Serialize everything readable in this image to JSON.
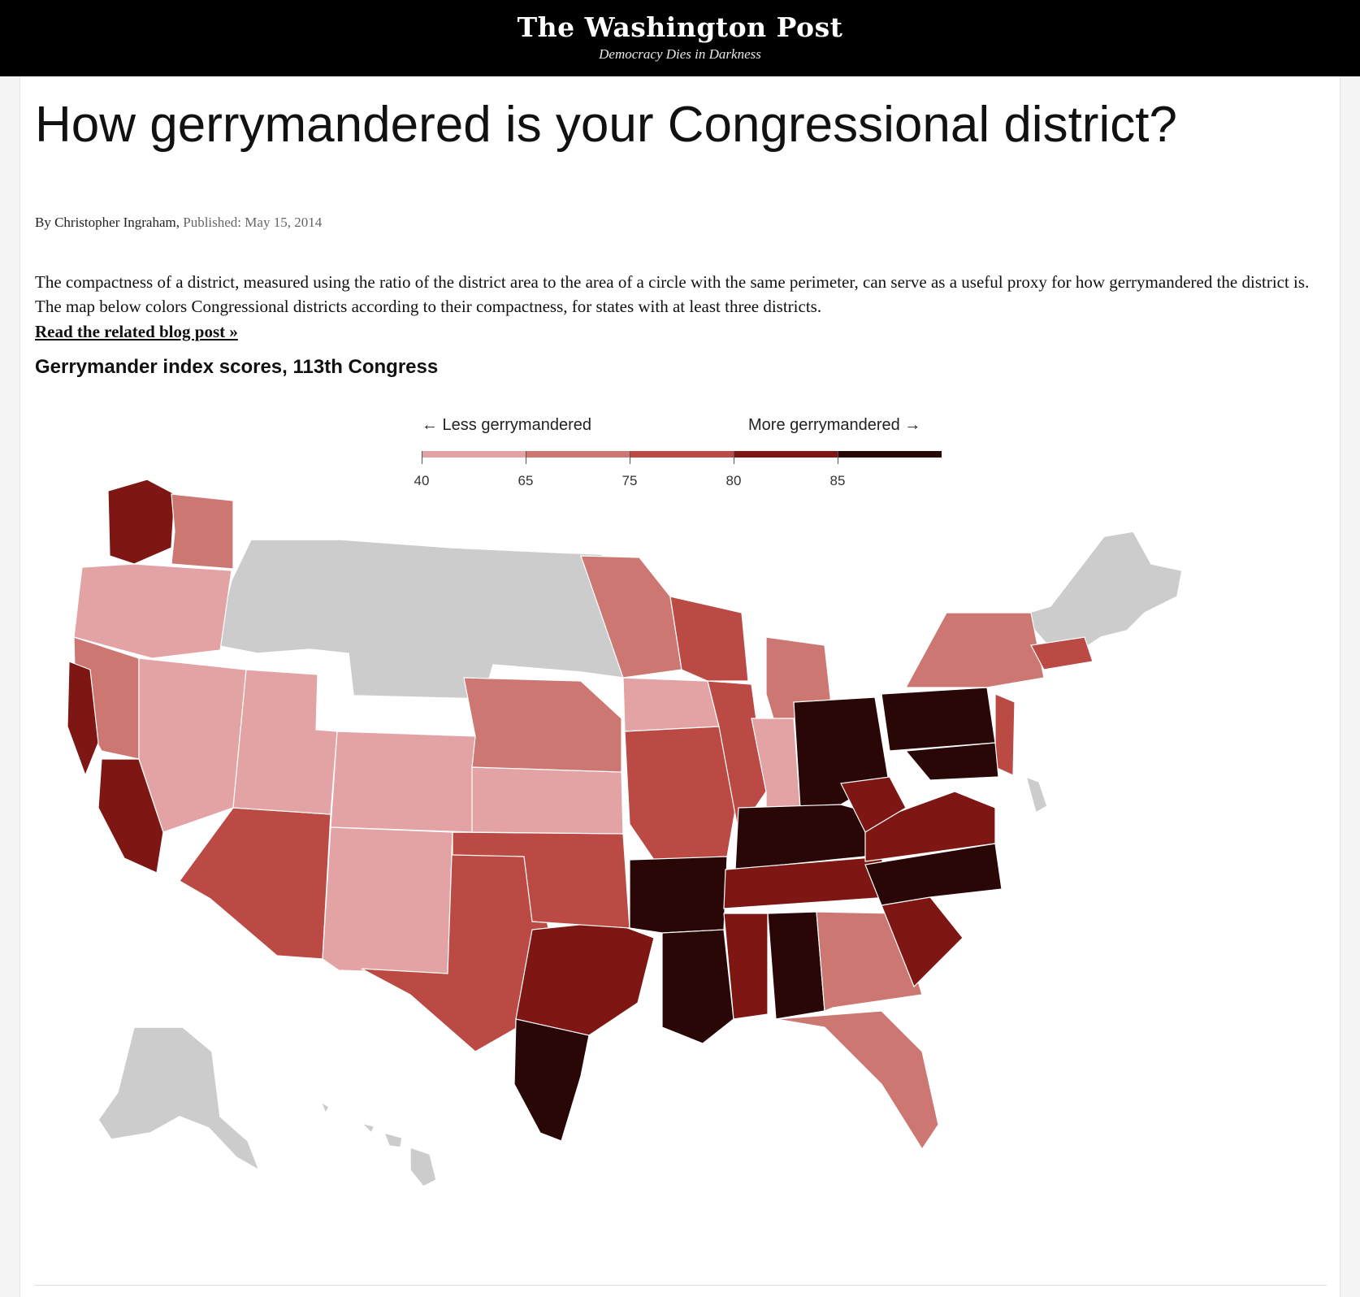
{
  "masthead": {
    "logo": "The Washington Post",
    "tagline": "Democracy Dies in Darkness"
  },
  "article": {
    "headline": "How gerrymandered is your Congressional district?",
    "byline": "By Christopher Ingraham,",
    "published": "Published: May 15, 2014",
    "intro": "The compactness of a district, measured using the ratio of the district area to the area of a circle with the same perimeter, can serve as a useful proxy for how gerrymandered the district is. The map below colors Congressional districts according to their compactness, for states with at least three districts.",
    "link_text": "Read the related blog post »",
    "chart_title": "Gerrymander index scores, 113th Congress"
  },
  "legend": {
    "left_label": "← Less gerrymandered",
    "right_label": "More gerrymandered →",
    "ticks": [
      "40",
      "65",
      "75",
      "80",
      "85"
    ],
    "colors": [
      "#e3a2a4",
      "#cc7772",
      "#bc4a44",
      "#7e1614",
      "#2a0707"
    ]
  },
  "map": {
    "no_data_color": "#cccccc",
    "border_color": "#ffffff",
    "regions": [
      {
        "name": "Washington-west",
        "score_band": 4
      },
      {
        "name": "Washington-east",
        "score_band": 2
      },
      {
        "name": "Oregon",
        "score_band": 1
      },
      {
        "name": "California-north",
        "score_band": 2
      },
      {
        "name": "California-coast",
        "score_band": 4
      },
      {
        "name": "California-south",
        "score_band": 4
      },
      {
        "name": "Nevada",
        "score_band": 1
      },
      {
        "name": "Arizona",
        "score_band": 3
      },
      {
        "name": "Utah",
        "score_band": 1
      },
      {
        "name": "Colorado",
        "score_band": 1
      },
      {
        "name": "New Mexico",
        "score_band": 1
      },
      {
        "name": "Texas-west",
        "score_band": 3
      },
      {
        "name": "Texas-central",
        "score_band": 4
      },
      {
        "name": "Texas-south",
        "score_band": 5
      },
      {
        "name": "Oklahoma",
        "score_band": 3
      },
      {
        "name": "Kansas",
        "score_band": 1
      },
      {
        "name": "Nebraska",
        "score_band": 2
      },
      {
        "name": "Minnesota",
        "score_band": 2
      },
      {
        "name": "Iowa",
        "score_band": 1
      },
      {
        "name": "Missouri",
        "score_band": 3
      },
      {
        "name": "Arkansas",
        "score_band": 5
      },
      {
        "name": "Louisiana",
        "score_band": 5
      },
      {
        "name": "Wisconsin",
        "score_band": 3
      },
      {
        "name": "Illinois",
        "score_band": 3
      },
      {
        "name": "Michigan",
        "score_band": 2
      },
      {
        "name": "Indiana",
        "score_band": 1
      },
      {
        "name": "Ohio",
        "score_band": 5
      },
      {
        "name": "Kentucky",
        "score_band": 5
      },
      {
        "name": "Tennessee",
        "score_band": 4
      },
      {
        "name": "Mississippi",
        "score_band": 4
      },
      {
        "name": "Alabama",
        "score_band": 5
      },
      {
        "name": "Georgia",
        "score_band": 2
      },
      {
        "name": "Florida",
        "score_band": 2
      },
      {
        "name": "South Carolina",
        "score_band": 4
      },
      {
        "name": "North Carolina",
        "score_band": 5
      },
      {
        "name": "Virginia",
        "score_band": 4
      },
      {
        "name": "West Virginia",
        "score_band": 4
      },
      {
        "name": "Pennsylvania",
        "score_band": 5
      },
      {
        "name": "New York",
        "score_band": 2
      },
      {
        "name": "New Jersey",
        "score_band": 3
      },
      {
        "name": "Maryland",
        "score_band": 5
      },
      {
        "name": "Massachusetts",
        "score_band": 3
      }
    ],
    "no_data_states": [
      "Montana",
      "Idaho",
      "Wyoming",
      "North Dakota",
      "South Dakota",
      "Maine",
      "New Hampshire",
      "Vermont",
      "Alaska",
      "Hawaii",
      "Delaware",
      "Rhode Island"
    ]
  }
}
